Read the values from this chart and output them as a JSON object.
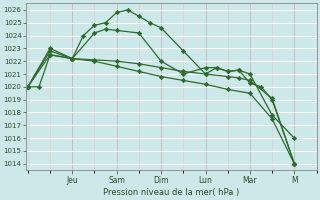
{
  "xlabel": "Pression niveau de la mer( hPa )",
  "bg_color": "#cce8e8",
  "grid_color_major": "#ffffff",
  "grid_color_minor": "#ddf0f0",
  "line_color": "#2d6a2d",
  "ylim": [
    1013.5,
    1026.5
  ],
  "yticks": [
    1014,
    1015,
    1016,
    1017,
    1018,
    1019,
    1020,
    1021,
    1022,
    1023,
    1024,
    1025,
    1026
  ],
  "day_labels": [
    "Jeu",
    "Sam",
    "Dim",
    "Lun",
    "Mar",
    "M"
  ],
  "day_x": [
    2.0,
    4.0,
    6.0,
    8.0,
    10.0,
    12.0
  ],
  "xlim": [
    -0.1,
    13.0
  ],
  "series": [
    {
      "x": [
        0.0,
        0.5,
        1.0,
        2.0,
        2.5,
        3.0,
        3.5,
        4.0,
        4.5,
        5.0,
        5.5,
        6.0,
        7.0,
        8.0,
        8.5,
        9.0,
        9.5,
        10.0,
        10.5,
        11.0,
        12.0
      ],
      "y": [
        1020.0,
        1020.0,
        1022.5,
        1022.2,
        1024.0,
        1024.8,
        1025.0,
        1025.8,
        1026.0,
        1025.5,
        1025.0,
        1024.6,
        1022.8,
        1021.0,
        1021.5,
        1021.2,
        1021.3,
        1020.3,
        1020.0,
        1019.0,
        1014.0
      ]
    },
    {
      "x": [
        0.0,
        1.0,
        2.0,
        3.0,
        3.5,
        4.0,
        5.0,
        6.0,
        7.0,
        8.0,
        8.5,
        9.0,
        9.5,
        10.0,
        11.0,
        12.0
      ],
      "y": [
        1020.0,
        1022.8,
        1022.2,
        1024.2,
        1024.5,
        1024.4,
        1024.2,
        1022.0,
        1021.0,
        1021.5,
        1021.5,
        1021.2,
        1021.3,
        1021.0,
        1017.8,
        1016.0
      ]
    },
    {
      "x": [
        0.0,
        1.0,
        2.0,
        3.0,
        4.0,
        5.0,
        6.0,
        7.0,
        8.0,
        9.0,
        9.5,
        10.0,
        11.0,
        12.0
      ],
      "y": [
        1020.0,
        1023.0,
        1022.2,
        1022.1,
        1022.0,
        1021.8,
        1021.5,
        1021.2,
        1021.0,
        1020.8,
        1020.7,
        1020.5,
        1019.1,
        1014.0
      ]
    },
    {
      "x": [
        0.0,
        1.0,
        2.0,
        3.0,
        4.0,
        5.0,
        6.0,
        7.0,
        8.0,
        9.0,
        10.0,
        11.0,
        12.0
      ],
      "y": [
        1020.0,
        1022.5,
        1022.2,
        1022.0,
        1021.6,
        1021.2,
        1020.8,
        1020.5,
        1020.2,
        1019.8,
        1019.5,
        1017.5,
        1014.0
      ]
    }
  ]
}
